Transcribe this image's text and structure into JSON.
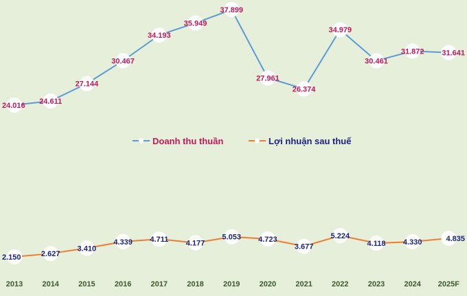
{
  "chart_data": {
    "type": "line",
    "categories": [
      "2013",
      "2014",
      "2015",
      "2016",
      "2017",
      "2018",
      "2019",
      "2020",
      "2021",
      "2022",
      "2023",
      "2024",
      "2025F"
    ],
    "series": [
      {
        "name": "Doanh thu thuần",
        "color": "#5b9bd5",
        "label_color": "#c2185b",
        "values": [
          24.016,
          24.611,
          27.144,
          30.467,
          34.193,
          35.949,
          37.899,
          27.961,
          26.374,
          34.979,
          30.461,
          31.872,
          31.641
        ],
        "labels": [
          "24.016",
          "24.611",
          "27.144",
          "30.467",
          "34.193",
          "35.949",
          "37.899",
          "27.961",
          "26.374",
          "34.979",
          "30.461",
          "31.872",
          "31.641"
        ]
      },
      {
        "name": "Lợi nhuận sau thuế",
        "color": "#ed7d31",
        "label_color": "#1a237e",
        "values": [
          2.15,
          2.627,
          3.41,
          4.339,
          4.711,
          4.177,
          5.053,
          4.723,
          3.677,
          5.224,
          4.118,
          4.33,
          4.835
        ],
        "labels": [
          "2.150",
          "2.627",
          "3.410",
          "4.339",
          "4.711",
          "4.177",
          "5.053",
          "4.723",
          "3.677",
          "5.224",
          "4.118",
          "4.330",
          "4.835"
        ]
      }
    ],
    "legend_position": "center",
    "grid": false,
    "title": "",
    "xlabel": "",
    "ylabel": ""
  },
  "colors": {
    "background": "#e6efda",
    "marker_fill": "#ffffff"
  }
}
